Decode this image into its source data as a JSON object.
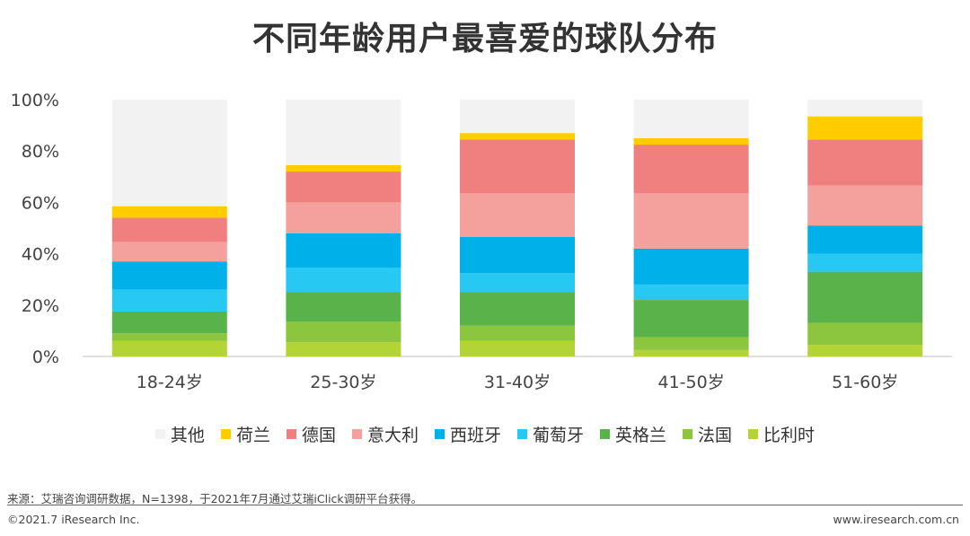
{
  "title": "不同年龄用户最喜爱的球队分布",
  "source": "来源：艾瑞咨询调研数据，N=1398，于2021年7月通过艾瑞iClick调研平台获得。",
  "copyright": "©2021.7 iResearch Inc.",
  "website": "www.iresearch.com.cn",
  "legend": [
    {
      "label": "其他",
      "color": "#f2f2f2"
    },
    {
      "label": "荷兰",
      "color": "#ffcc00"
    },
    {
      "label": "德国",
      "color": "#f08080"
    },
    {
      "label": "意大利",
      "color": "#f4a09c"
    },
    {
      "label": "西班牙",
      "color": "#00b0e8"
    },
    {
      "label": "葡萄牙",
      "color": "#27c8f2"
    },
    {
      "label": "英格兰",
      "color": "#5ab24a"
    },
    {
      "label": "法国",
      "color": "#8cc63f"
    },
    {
      "label": "比利时",
      "color": "#b4d334"
    }
  ],
  "chart_data": {
    "type": "bar",
    "stacked": true,
    "categories": [
      "18-24岁",
      "25-30岁",
      "31-40岁",
      "41-50岁",
      "51-60岁"
    ],
    "ylim": [
      0,
      100
    ],
    "yticks": [
      "0%",
      "20%",
      "40%",
      "60%",
      "80%",
      "100%"
    ],
    "series": [
      {
        "name": "比利时",
        "color": "#b4d334",
        "values": [
          6,
          5.5,
          6,
          2.5,
          4.5
        ]
      },
      {
        "name": "法国",
        "color": "#8cc63f",
        "values": [
          3,
          8,
          6,
          5,
          8.5
        ]
      },
      {
        "name": "英格兰",
        "color": "#5ab24a",
        "values": [
          8.5,
          11.5,
          13,
          14.5,
          20
        ]
      },
      {
        "name": "葡萄牙",
        "color": "#27c8f2",
        "values": [
          8.5,
          9.5,
          7.5,
          6,
          7
        ]
      },
      {
        "name": "西班牙",
        "color": "#00b0e8",
        "values": [
          11,
          13.5,
          14,
          14,
          11
        ]
      },
      {
        "name": "意大利",
        "color": "#f4a09c",
        "values": [
          7.5,
          12,
          17,
          21.5,
          15.5
        ]
      },
      {
        "name": "德国",
        "color": "#f08080",
        "values": [
          9.5,
          12,
          21,
          19,
          18
        ]
      },
      {
        "name": "荷兰",
        "color": "#ffcc00",
        "values": [
          4.5,
          2.5,
          2.5,
          2.5,
          9
        ]
      },
      {
        "name": "其他",
        "color": "#f2f2f2",
        "values": [
          41.5,
          25.5,
          13,
          15,
          6.5
        ]
      }
    ]
  }
}
